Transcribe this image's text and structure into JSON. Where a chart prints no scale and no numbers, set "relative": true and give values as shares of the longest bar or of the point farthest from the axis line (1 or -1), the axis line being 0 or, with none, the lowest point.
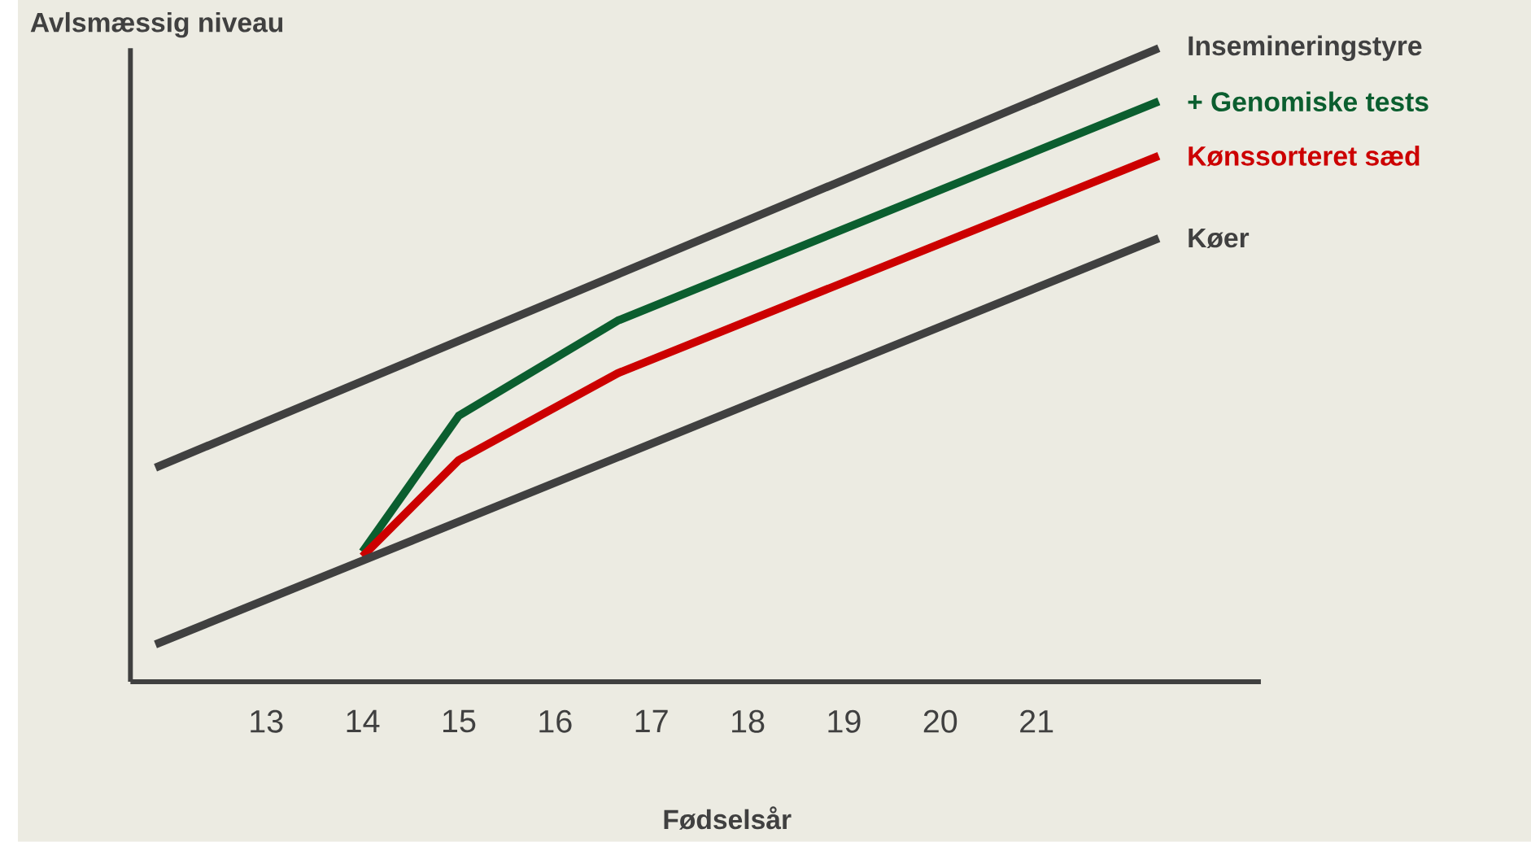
{
  "chart_data": {
    "type": "line",
    "relative": true,
    "xlabel": "Fødselsår",
    "ylabel": "Avlsmæssig niveau",
    "xlim": [
      11.59,
      23.33
    ],
    "xticks": [
      13,
      14,
      15,
      16,
      17,
      18,
      19,
      20,
      21
    ],
    "tick_labels": "x",
    "grid": false,
    "legend": "right",
    "marker": "none",
    "line_style": "solid",
    "series": [
      {
        "name": "Insemineringstyre",
        "color": "#404040",
        "x": [
          11.85,
          22.27
        ],
        "values": [
          0.338,
          1
        ]
      },
      {
        "name": "+ Genomiske tests",
        "color": "#0b5e2f",
        "x": [
          14,
          15,
          16.65,
          22.27
        ],
        "values": [
          0.205,
          0.42,
          0.57,
          0.916
        ]
      },
      {
        "name": "Kønssorteret sæd",
        "color": "#cc0000",
        "x": [
          14,
          15,
          16.65,
          22.27
        ],
        "values": [
          0.198,
          0.35,
          0.487,
          0.83
        ]
      },
      {
        "name": "Køer",
        "color": "#404040",
        "x": [
          11.85,
          22.27
        ],
        "values": [
          0.059,
          0.7
        ]
      }
    ]
  }
}
